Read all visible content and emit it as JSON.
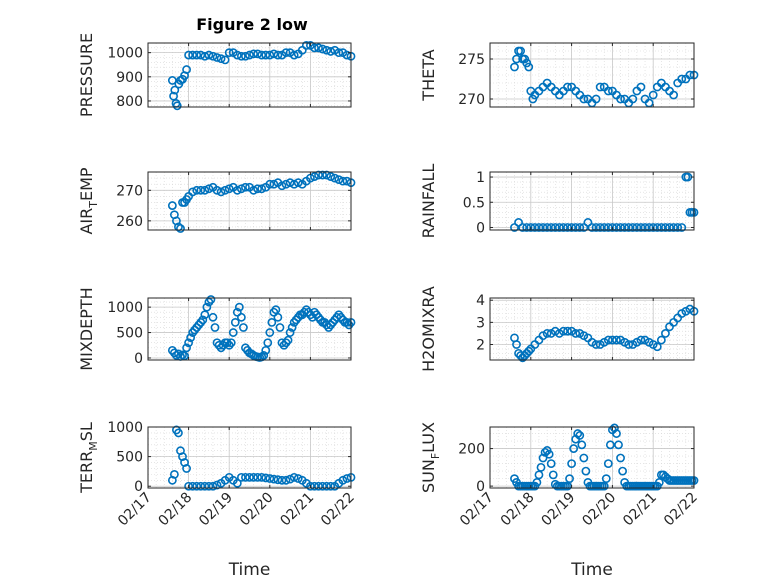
{
  "figure": {
    "title": "Figure 2 low",
    "xlabel": "Time",
    "xticks": [
      "02/17",
      "02/18",
      "02/19",
      "02/20",
      "02/21",
      "02/22"
    ],
    "marker_color": "#0072BD",
    "grid": true,
    "minor_grid": true
  },
  "chart_data": [
    {
      "type": "scatter",
      "id": "pressure",
      "ylabel_main": "PRESSURE",
      "ylabel_sub": "",
      "xlim": [
        0,
        5
      ],
      "ylim": [
        775,
        1040
      ],
      "yticks": [
        800,
        900,
        1000
      ],
      "ytick_labels": [
        "800",
        "900",
        "1000"
      ],
      "x": [
        0.6,
        0.63,
        0.66,
        0.69,
        0.72,
        0.76,
        0.8,
        0.85,
        0.9,
        0.95,
        1.0,
        1.1,
        1.2,
        1.3,
        1.4,
        1.5,
        1.6,
        1.7,
        1.8,
        1.9,
        2.0,
        2.1,
        2.2,
        2.3,
        2.4,
        2.5,
        2.6,
        2.7,
        2.8,
        2.9,
        3.0,
        3.1,
        3.2,
        3.3,
        3.4,
        3.5,
        3.6,
        3.7,
        3.8,
        3.9,
        4.0,
        4.1,
        4.2,
        4.3,
        4.4,
        4.5,
        4.6,
        4.7,
        4.8,
        4.9,
        5.0
      ],
      "y": [
        885,
        820,
        845,
        790,
        780,
        870,
        885,
        890,
        905,
        930,
        990,
        990,
        990,
        990,
        985,
        990,
        985,
        980,
        975,
        970,
        1000,
        1000,
        990,
        985,
        985,
        990,
        995,
        995,
        990,
        990,
        990,
        995,
        990,
        990,
        1000,
        1000,
        990,
        995,
        1010,
        1030,
        1030,
        1020,
        1020,
        1015,
        1010,
        1005,
        1010,
        1000,
        1000,
        990,
        985
      ]
    },
    {
      "type": "scatter",
      "id": "theta",
      "ylabel_main": "THETA",
      "ylabel_sub": "",
      "xlim": [
        0,
        5
      ],
      "ylim": [
        269,
        277
      ],
      "yticks": [
        270,
        275
      ],
      "ytick_labels": [
        "270",
        "275"
      ],
      "x": [
        0.6,
        0.65,
        0.7,
        0.75,
        0.8,
        0.85,
        0.9,
        0.95,
        1.0,
        1.05,
        1.1,
        1.2,
        1.3,
        1.4,
        1.5,
        1.6,
        1.7,
        1.8,
        1.9,
        2.0,
        2.1,
        2.2,
        2.3,
        2.4,
        2.5,
        2.6,
        2.7,
        2.8,
        2.9,
        3.0,
        3.1,
        3.2,
        3.3,
        3.4,
        3.5,
        3.6,
        3.7,
        3.8,
        3.9,
        4.0,
        4.1,
        4.2,
        4.3,
        4.4,
        4.5,
        4.6,
        4.7,
        4.8,
        4.9,
        5.0
      ],
      "y": [
        274,
        275,
        276,
        276,
        275,
        275,
        274.5,
        274,
        271,
        270,
        270.5,
        271,
        271.5,
        272,
        271.5,
        271,
        270.5,
        271,
        271.5,
        271.5,
        271,
        270.5,
        270,
        270,
        269.5,
        270,
        271.5,
        271.5,
        271,
        271,
        270.5,
        270,
        270,
        269.5,
        270,
        271,
        271.5,
        270,
        269.5,
        270.5,
        271.5,
        272,
        271.5,
        271,
        270.5,
        272,
        272.5,
        272.5,
        273,
        273
      ]
    },
    {
      "type": "scatter",
      "id": "air_temp",
      "ylabel_main": "AIR",
      "ylabel_sub": "T",
      "ylabel_tail": "EMP",
      "xlim": [
        0,
        5
      ],
      "ylim": [
        257,
        276
      ],
      "yticks": [
        260,
        270
      ],
      "ytick_labels": [
        "260",
        "270"
      ],
      "x": [
        0.6,
        0.65,
        0.7,
        0.75,
        0.8,
        0.85,
        0.9,
        0.95,
        1.0,
        1.1,
        1.2,
        1.3,
        1.4,
        1.5,
        1.6,
        1.7,
        1.8,
        1.9,
        2.0,
        2.1,
        2.2,
        2.3,
        2.4,
        2.5,
        2.6,
        2.7,
        2.8,
        2.9,
        3.0,
        3.1,
        3.2,
        3.3,
        3.4,
        3.5,
        3.6,
        3.7,
        3.8,
        3.9,
        4.0,
        4.1,
        4.2,
        4.3,
        4.4,
        4.5,
        4.6,
        4.7,
        4.8,
        4.9,
        5.0
      ],
      "y": [
        265,
        262,
        260,
        258,
        257.5,
        266,
        266,
        267,
        268,
        269.5,
        270,
        270,
        270,
        270.5,
        271,
        270,
        269.5,
        270,
        270.5,
        271,
        270,
        270.5,
        271,
        271,
        270,
        270.5,
        270.5,
        271,
        272,
        272,
        272.5,
        271.5,
        272,
        272.5,
        272,
        272.5,
        272,
        273,
        274,
        274.5,
        275,
        275,
        275,
        274.5,
        274,
        273.5,
        273,
        273,
        272.5
      ]
    },
    {
      "type": "scatter",
      "id": "rainfall",
      "ylabel_main": "RAINFALL",
      "ylabel_sub": "",
      "xlim": [
        0,
        5
      ],
      "ylim": [
        -0.05,
        1.1
      ],
      "yticks": [
        0,
        0.5,
        1
      ],
      "ytick_labels": [
        "0",
        "0.5",
        "1"
      ],
      "x": [
        0.6,
        0.7,
        0.8,
        0.9,
        1.0,
        1.1,
        1.2,
        1.3,
        1.4,
        1.5,
        1.6,
        1.7,
        1.8,
        1.9,
        2.0,
        2.1,
        2.2,
        2.3,
        2.4,
        2.5,
        2.6,
        2.7,
        2.8,
        2.9,
        3.0,
        3.1,
        3.2,
        3.3,
        3.4,
        3.5,
        3.6,
        3.7,
        3.8,
        3.9,
        4.0,
        4.1,
        4.2,
        4.3,
        4.4,
        4.5,
        4.6,
        4.7,
        4.8,
        4.85,
        4.9,
        4.95,
        5.0
      ],
      "y": [
        0,
        0.1,
        0,
        0,
        0,
        0,
        0,
        0,
        0,
        0,
        0,
        0,
        0,
        0,
        0,
        0,
        0,
        0,
        0.1,
        0,
        0,
        0,
        0,
        0,
        0,
        0,
        0,
        0,
        0,
        0,
        0,
        0,
        0,
        0,
        0,
        0,
        0,
        0,
        0,
        0,
        0,
        0,
        1,
        1,
        0.3,
        0.3,
        0.3
      ]
    },
    {
      "type": "scatter",
      "id": "mixdepth",
      "ylabel_main": "MIXDEPTH",
      "ylabel_sub": "",
      "xlim": [
        0,
        5
      ],
      "ylim": [
        -40,
        1180
      ],
      "yticks": [
        0,
        500,
        1000
      ],
      "ytick_labels": [
        "0",
        "500",
        "1000"
      ],
      "x": [
        0.6,
        0.65,
        0.7,
        0.75,
        0.8,
        0.85,
        0.9,
        0.95,
        1.0,
        1.05,
        1.1,
        1.15,
        1.2,
        1.25,
        1.3,
        1.35,
        1.4,
        1.45,
        1.5,
        1.55,
        1.6,
        1.65,
        1.7,
        1.75,
        1.8,
        1.85,
        1.9,
        1.95,
        2.0,
        2.05,
        2.1,
        2.15,
        2.2,
        2.25,
        2.3,
        2.35,
        2.4,
        2.45,
        2.5,
        2.55,
        2.6,
        2.65,
        2.7,
        2.75,
        2.8,
        2.85,
        2.9,
        2.95,
        3.0,
        3.05,
        3.1,
        3.15,
        3.2,
        3.25,
        3.3,
        3.35,
        3.4,
        3.45,
        3.5,
        3.55,
        3.6,
        3.65,
        3.7,
        3.75,
        3.8,
        3.85,
        3.9,
        3.95,
        4.0,
        4.05,
        4.1,
        4.15,
        4.2,
        4.25,
        4.3,
        4.35,
        4.4,
        4.45,
        4.5,
        4.55,
        4.6,
        4.65,
        4.7,
        4.75,
        4.8,
        4.85,
        4.9,
        4.95,
        5.0
      ],
      "y": [
        150,
        100,
        50,
        80,
        30,
        60,
        40,
        200,
        300,
        400,
        500,
        550,
        600,
        650,
        700,
        750,
        850,
        1000,
        1100,
        1150,
        800,
        600,
        300,
        250,
        200,
        250,
        300,
        300,
        250,
        300,
        500,
        700,
        900,
        1000,
        800,
        600,
        200,
        150,
        100,
        80,
        50,
        30,
        20,
        10,
        20,
        50,
        150,
        300,
        500,
        700,
        900,
        950,
        800,
        600,
        300,
        250,
        300,
        350,
        500,
        600,
        700,
        750,
        800,
        850,
        850,
        900,
        950,
        900,
        850,
        800,
        900,
        850,
        800,
        750,
        700,
        700,
        650,
        600,
        650,
        700,
        750,
        800,
        850,
        800,
        750,
        700,
        700,
        650,
        700
      ]
    },
    {
      "type": "scatter",
      "id": "h2omixra",
      "ylabel_main": "H2OMIXRA",
      "ylabel_sub": "",
      "xlim": [
        0,
        5
      ],
      "ylim": [
        1.3,
        4.1
      ],
      "yticks": [
        2,
        3,
        4
      ],
      "ytick_labels": [
        "2",
        "3",
        "4"
      ],
      "x": [
        0.6,
        0.65,
        0.7,
        0.75,
        0.8,
        0.85,
        0.9,
        0.95,
        1.0,
        1.1,
        1.2,
        1.3,
        1.4,
        1.5,
        1.6,
        1.7,
        1.8,
        1.9,
        2.0,
        2.1,
        2.2,
        2.3,
        2.4,
        2.5,
        2.6,
        2.7,
        2.8,
        2.9,
        3.0,
        3.1,
        3.2,
        3.3,
        3.4,
        3.5,
        3.6,
        3.7,
        3.8,
        3.9,
        4.0,
        4.1,
        4.2,
        4.3,
        4.4,
        4.5,
        4.6,
        4.7,
        4.8,
        4.9,
        5.0
      ],
      "y": [
        2.3,
        2.0,
        1.6,
        1.5,
        1.4,
        1.5,
        1.6,
        1.7,
        1.8,
        2.0,
        2.2,
        2.4,
        2.5,
        2.5,
        2.6,
        2.5,
        2.6,
        2.6,
        2.6,
        2.5,
        2.5,
        2.4,
        2.3,
        2.1,
        2.0,
        2.0,
        2.1,
        2.2,
        2.2,
        2.2,
        2.2,
        2.1,
        2.0,
        2.0,
        2.1,
        2.2,
        2.2,
        2.1,
        2.0,
        1.9,
        2.2,
        2.5,
        2.8,
        3.0,
        3.2,
        3.4,
        3.5,
        3.6,
        3.5
      ]
    },
    {
      "type": "scatter",
      "id": "terr_msl",
      "ylabel_main": "TERR",
      "ylabel_sub": "M",
      "ylabel_tail": "SL",
      "xlim": [
        0,
        5
      ],
      "ylim": [
        -30,
        1000
      ],
      "yticks": [
        0,
        500,
        1000
      ],
      "ytick_labels": [
        "0",
        "500",
        "1000"
      ],
      "x": [
        0.6,
        0.65,
        0.7,
        0.75,
        0.8,
        0.85,
        0.9,
        0.95,
        1.0,
        1.1,
        1.2,
        1.3,
        1.4,
        1.5,
        1.6,
        1.7,
        1.8,
        1.9,
        2.0,
        2.1,
        2.2,
        2.3,
        2.4,
        2.5,
        2.6,
        2.7,
        2.8,
        2.9,
        3.0,
        3.1,
        3.2,
        3.3,
        3.4,
        3.5,
        3.6,
        3.7,
        3.8,
        3.9,
        4.0,
        4.1,
        4.2,
        4.3,
        4.4,
        4.5,
        4.6,
        4.7,
        4.8,
        4.9,
        5.0
      ],
      "y": [
        100,
        200,
        950,
        900,
        600,
        500,
        400,
        300,
        0,
        0,
        0,
        0,
        0,
        0,
        0,
        20,
        50,
        100,
        150,
        100,
        50,
        150,
        150,
        150,
        150,
        150,
        150,
        140,
        130,
        120,
        110,
        100,
        100,
        120,
        150,
        130,
        100,
        50,
        0,
        0,
        0,
        0,
        0,
        0,
        0,
        50,
        100,
        130,
        150
      ]
    },
    {
      "type": "scatter",
      "id": "sun_flux",
      "ylabel_main": "SUN",
      "ylabel_sub": "F",
      "ylabel_tail": "LUX",
      "xlim": [
        0,
        5
      ],
      "ylim": [
        -10,
        315
      ],
      "yticks": [
        0,
        200
      ],
      "ytick_labels": [
        "0",
        "200"
      ],
      "x": [
        0.6,
        0.65,
        0.7,
        0.75,
        0.8,
        0.85,
        0.9,
        0.95,
        1.0,
        1.05,
        1.1,
        1.15,
        1.2,
        1.25,
        1.3,
        1.35,
        1.4,
        1.45,
        1.5,
        1.55,
        1.6,
        1.65,
        1.7,
        1.75,
        1.8,
        1.85,
        1.9,
        1.95,
        2.0,
        2.05,
        2.1,
        2.15,
        2.2,
        2.25,
        2.3,
        2.35,
        2.4,
        2.45,
        2.5,
        2.55,
        2.6,
        2.65,
        2.7,
        2.75,
        2.8,
        2.85,
        2.9,
        2.95,
        3.0,
        3.05,
        3.1,
        3.15,
        3.2,
        3.25,
        3.3,
        3.35,
        3.4,
        3.45,
        3.5,
        3.55,
        3.6,
        3.65,
        3.7,
        3.75,
        3.8,
        3.85,
        3.9,
        3.95,
        4.0,
        4.05,
        4.1,
        4.15,
        4.2,
        4.25,
        4.3,
        4.35,
        4.4,
        4.45,
        4.5,
        4.55,
        4.6,
        4.65,
        4.7,
        4.75,
        4.8,
        4.85,
        4.9,
        4.95,
        5.0
      ],
      "y": [
        40,
        20,
        0,
        0,
        0,
        0,
        0,
        0,
        0,
        0,
        0,
        20,
        60,
        100,
        150,
        180,
        190,
        170,
        120,
        60,
        10,
        0,
        0,
        0,
        0,
        0,
        0,
        40,
        120,
        200,
        250,
        280,
        270,
        220,
        150,
        80,
        20,
        0,
        0,
        0,
        0,
        0,
        0,
        0,
        0,
        40,
        120,
        220,
        300,
        310,
        280,
        220,
        150,
        80,
        20,
        0,
        0,
        0,
        0,
        0,
        0,
        0,
        0,
        0,
        0,
        0,
        0,
        0,
        0,
        0,
        0,
        20,
        60,
        60,
        50,
        40,
        30,
        30,
        30,
        30,
        30,
        30,
        30,
        30,
        30,
        30,
        30,
        30,
        30
      ]
    }
  ]
}
